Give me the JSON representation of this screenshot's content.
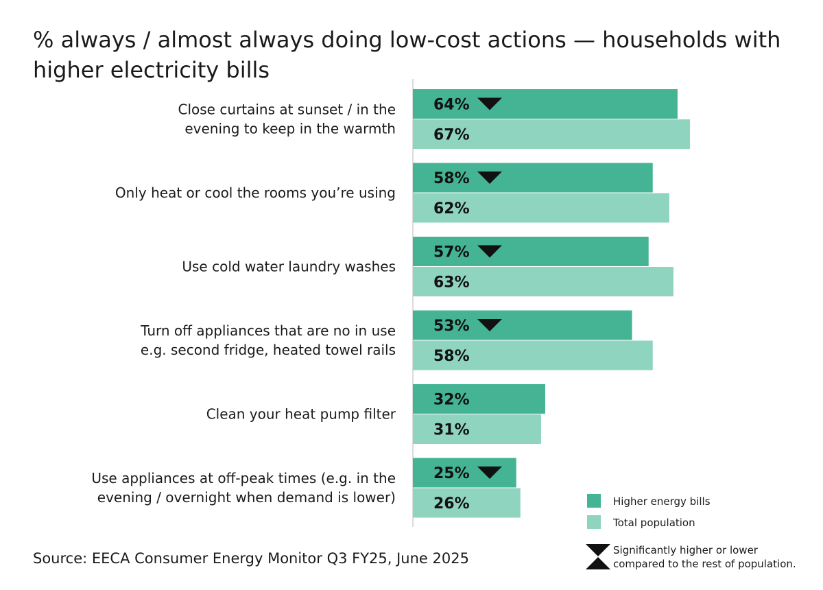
{
  "chart_data": {
    "type": "bar",
    "orientation": "horizontal",
    "title": "% always / almost always doing low-cost actions — households with higher electricity bills",
    "categories": [
      [
        "Close curtains at sunset / in the",
        "evening to keep in the warmth"
      ],
      [
        "Only heat or cool the rooms you’re using"
      ],
      [
        "Use cold water laundry washes"
      ],
      [
        "Turn off appliances that are no in use",
        "e.g. second fridge, heated towel rails"
      ],
      [
        "Clean your heat pump filter"
      ],
      [
        "Use appliances at off-peak times (e.g. in the",
        "evening / overnight when demand is lower)"
      ]
    ],
    "series": [
      {
        "name": "Higher energy bills",
        "color": "#44b494",
        "values": [
          64,
          58,
          57,
          53,
          32,
          25
        ],
        "significance": [
          "lower",
          "lower",
          "lower",
          "lower",
          "none",
          "lower"
        ]
      },
      {
        "name": "Total population",
        "color": "#8fd4bf",
        "values": [
          67,
          62,
          63,
          58,
          31,
          26
        ]
      }
    ],
    "value_suffix": "%",
    "xlim": [
      0,
      70
    ],
    "legend": {
      "position": "bottom-right",
      "significance_note": [
        "Significantly higher or lower",
        "compared to the rest of population."
      ]
    }
  },
  "source": "Source: EECA Consumer Energy Monitor Q3 FY25, June 2025"
}
